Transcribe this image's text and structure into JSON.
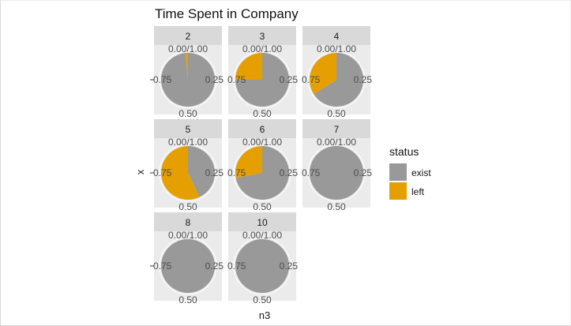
{
  "chart_data": {
    "type": "pie",
    "title": "Time Spent in Company",
    "xlabel": "n3",
    "ylabel": "x",
    "theta_tick_labels": [
      "0.00/1.00",
      "0.25",
      "0.50",
      "0.75"
    ],
    "legend": {
      "title": "status",
      "position": "right",
      "entries": [
        "exist",
        "left"
      ]
    },
    "colors": {
      "exist": "#999999",
      "left": "#E69F00",
      "panel_bg": "#EBEBEB",
      "strip_bg": "#D9D9D9",
      "grid": "#FFFFFF"
    },
    "facets": [
      {
        "label": "2",
        "exist": 0.985,
        "left": 0.015
      },
      {
        "label": "3",
        "exist": 0.75,
        "left": 0.25
      },
      {
        "label": "4",
        "exist": 0.66,
        "left": 0.34
      },
      {
        "label": "5",
        "exist": 0.43,
        "left": 0.57
      },
      {
        "label": "6",
        "exist": 0.72,
        "left": 0.28
      },
      {
        "label": "7",
        "exist": 1.0,
        "left": 0.0
      },
      {
        "label": "8",
        "exist": 1.0,
        "left": 0.0
      },
      {
        "label": "10",
        "exist": 1.0,
        "left": 0.0
      }
    ]
  }
}
